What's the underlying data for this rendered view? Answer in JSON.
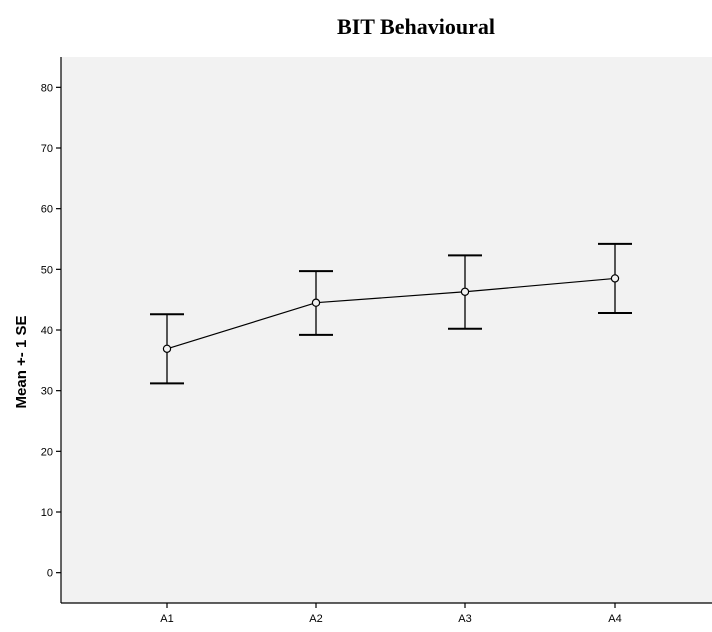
{
  "chart_data": {
    "type": "line",
    "title": "BIT Behavioural",
    "xlabel": "",
    "ylabel": "Mean +- 1 SE",
    "categories": [
      "A1",
      "A2",
      "A3",
      "A4"
    ],
    "series": [
      {
        "values": [
          36.9,
          44.5,
          46.3,
          48.5
        ],
        "error_low": [
          31.2,
          39.2,
          40.2,
          42.8
        ],
        "error_high": [
          42.6,
          49.7,
          52.3,
          54.2
        ]
      }
    ],
    "ylim": [
      -5,
      85
    ],
    "yticks": [
      0,
      10,
      20,
      30,
      40,
      50,
      60,
      70,
      80
    ],
    "plot_background": "#f2f2f2",
    "line_color": "#000000"
  }
}
